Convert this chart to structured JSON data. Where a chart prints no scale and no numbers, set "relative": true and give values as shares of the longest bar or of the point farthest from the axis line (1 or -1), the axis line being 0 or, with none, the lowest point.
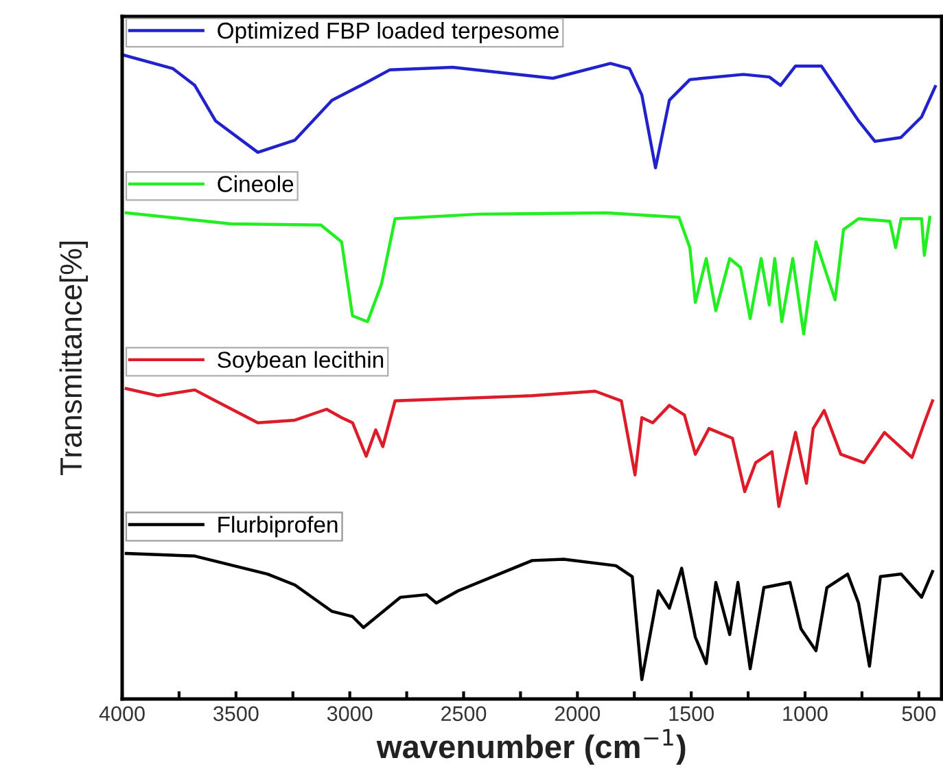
{
  "chart_data": {
    "type": "line",
    "relative": true,
    "xlabel": "wavenumber (cm$^{−1}$)",
    "ylabel": "Transmittance[%]",
    "xlim": [
      4000,
      400
    ],
    "xticks": [
      4000,
      {
        "value": 3750,
        "label": null
      },
      3500,
      {
        "value": 3250,
        "label": null
      },
      3000,
      {
        "value": 2750,
        "label": null
      },
      2500,
      {
        "value": 2250,
        "label": null
      },
      2000,
      {
        "value": 1750,
        "label": null
      },
      1500,
      {
        "value": 1250,
        "label": null
      },
      1000,
      {
        "value": 750,
        "label": null
      },
      500
    ],
    "legend": "left",
    "grid": false,
    "marker": "none",
    "line_style": "solid",
    "series": [
      {
        "name": "Optimized FBP loaded terpesome",
        "color": "#2222cc",
        "x": [
          3994,
          3777,
          3681,
          3590,
          3404,
          3241,
          3078,
          2940,
          2825,
          2548,
          2108,
          1855,
          1771,
          1717,
          1657,
          1596,
          1506,
          1271,
          1157,
          1108,
          1042,
          928,
          765,
          693,
          579,
          488,
          428
        ],
        "values": [
          1.0,
          0.979,
          0.953,
          0.898,
          0.849,
          0.868,
          0.93,
          0.955,
          0.977,
          0.981,
          0.964,
          0.987,
          0.979,
          0.938,
          0.825,
          0.93,
          0.962,
          0.97,
          0.966,
          0.953,
          0.983,
          0.983,
          0.898,
          0.866,
          0.872,
          0.904,
          0.951
        ]
      },
      {
        "name": "Cineole",
        "color": "#22ee22",
        "x": [
          3982,
          3524,
          3127,
          3036,
          2988,
          2922,
          2861,
          2801,
          2434,
          1873,
          1554,
          1506,
          1482,
          1434,
          1392,
          1331,
          1283,
          1241,
          1193,
          1157,
          1133,
          1102,
          1054,
          1006,
          952,
          868,
          831,
          765,
          627,
          602,
          578,
          488,
          476,
          452
        ],
        "values": [
          0.755,
          0.738,
          0.736,
          0.71,
          0.595,
          0.586,
          0.644,
          0.746,
          0.753,
          0.755,
          0.748,
          0.701,
          0.616,
          0.684,
          0.603,
          0.684,
          0.67,
          0.591,
          0.684,
          0.612,
          0.684,
          0.586,
          0.684,
          0.567,
          0.71,
          0.62,
          0.729,
          0.746,
          0.742,
          0.701,
          0.746,
          0.746,
          0.689,
          0.748
        ]
      },
      {
        "name": "Soybean lecithin",
        "color": "#dd1c2a",
        "x": [
          3982,
          3843,
          3681,
          3590,
          3404,
          3241,
          3102,
          3036,
          2988,
          2928,
          2886,
          2855,
          2801,
          2199,
          1922,
          1807,
          1747,
          1717,
          1669,
          1596,
          1530,
          1482,
          1422,
          1319,
          1265,
          1217,
          1145,
          1115,
          1042,
          994,
          964,
          916,
          843,
          741,
          651,
          530,
          476,
          440
        ],
        "values": [
          0.482,
          0.471,
          0.48,
          0.463,
          0.429,
          0.433,
          0.45,
          0.437,
          0.429,
          0.377,
          0.418,
          0.392,
          0.463,
          0.471,
          0.478,
          0.463,
          0.348,
          0.437,
          0.429,
          0.456,
          0.441,
          0.38,
          0.42,
          0.405,
          0.322,
          0.367,
          0.384,
          0.299,
          0.414,
          0.335,
          0.42,
          0.448,
          0.38,
          0.367,
          0.414,
          0.375,
          0.429,
          0.463
        ]
      },
      {
        "name": "Flurbiprofen",
        "color": "#000000",
        "x": [
          3982,
          3681,
          3361,
          3241,
          3078,
          2988,
          2940,
          2777,
          2663,
          2620,
          2524,
          2199,
          2060,
          1831,
          1759,
          1717,
          1645,
          1596,
          1542,
          1482,
          1434,
          1392,
          1331,
          1295,
          1241,
          1181,
          1066,
          1018,
          952,
          904,
          813,
          765,
          717,
          669,
          578,
          488,
          440
        ],
        "values": [
          0.226,
          0.222,
          0.194,
          0.177,
          0.136,
          0.128,
          0.111,
          0.158,
          0.162,
          0.149,
          0.168,
          0.215,
          0.217,
          0.207,
          0.19,
          0.03,
          0.168,
          0.141,
          0.203,
          0.096,
          0.055,
          0.181,
          0.1,
          0.181,
          0.047,
          0.173,
          0.181,
          0.109,
          0.075,
          0.173,
          0.194,
          0.149,
          0.051,
          0.19,
          0.194,
          0.158,
          0.198
        ]
      }
    ]
  }
}
